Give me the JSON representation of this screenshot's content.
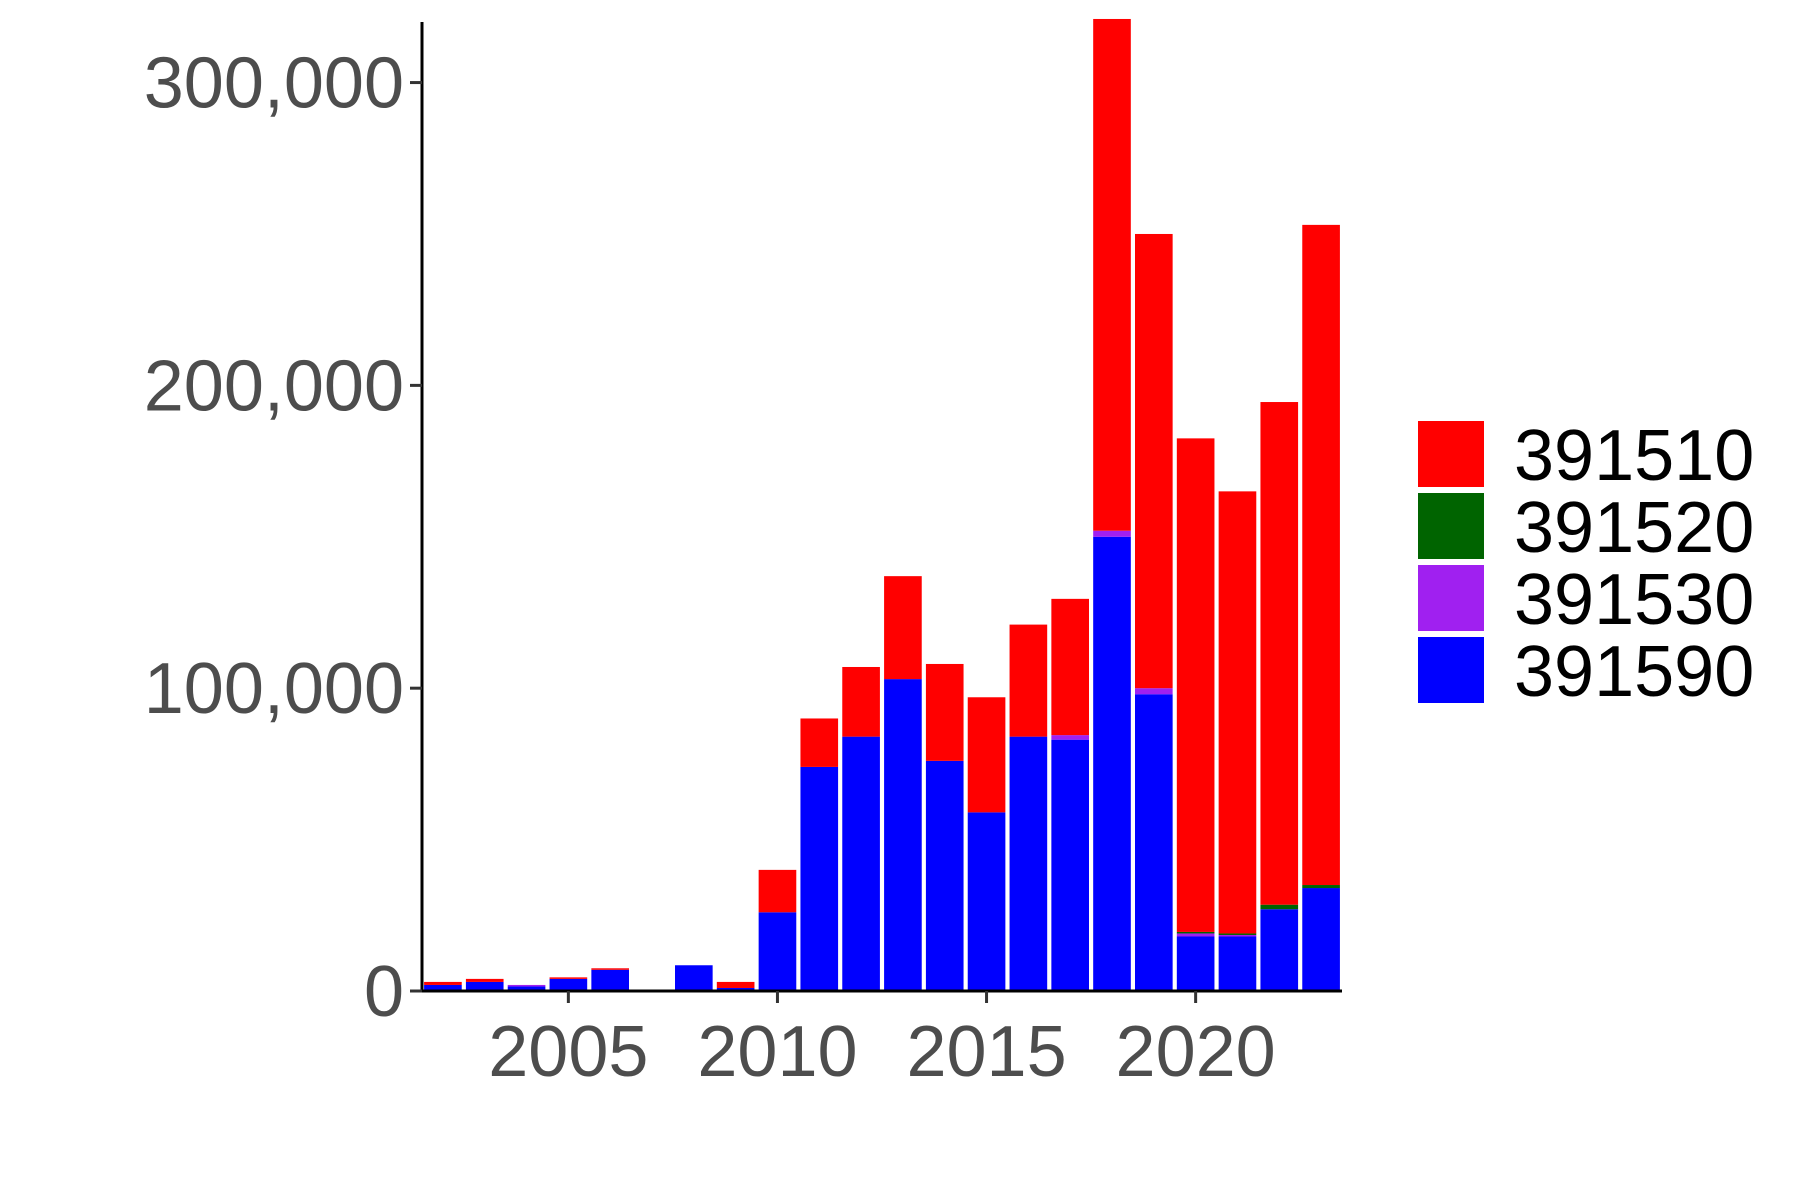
{
  "chart_data": {
    "type": "bar",
    "stacked": true,
    "title": "",
    "xlabel": "",
    "ylabel": "",
    "x": [
      2002,
      2003,
      2004,
      2005,
      2006,
      2007,
      2008,
      2009,
      2010,
      2011,
      2012,
      2013,
      2014,
      2015,
      2016,
      2017,
      2018,
      2019,
      2020,
      2021,
      2022,
      2023
    ],
    "series": [
      {
        "name": "391590",
        "color": "#0000ff",
        "values": [
          2000,
          3000,
          1500,
          4000,
          7000,
          0,
          8500,
          1000,
          26000,
          74000,
          84000,
          103000,
          76000,
          59000,
          84000,
          83000,
          150000,
          98000,
          18000,
          18000,
          27000,
          34000
        ]
      },
      {
        "name": "391530",
        "color": "#a020f0",
        "values": [
          0,
          0,
          500,
          0,
          0,
          0,
          0,
          0,
          0,
          0,
          0,
          0,
          0,
          0,
          0,
          1500,
          2000,
          2000,
          1000,
          500,
          0,
          0
        ]
      },
      {
        "name": "391520",
        "color": "#006400",
        "values": [
          0,
          0,
          0,
          0,
          0,
          0,
          0,
          0,
          0,
          0,
          0,
          0,
          0,
          0,
          0,
          0,
          0,
          0,
          500,
          500,
          1500,
          1000
        ]
      },
      {
        "name": "391510",
        "color": "#ff0000",
        "values": [
          1000,
          1000,
          0,
          500,
          500,
          0,
          0,
          2000,
          14000,
          16000,
          23000,
          34000,
          32000,
          38000,
          37000,
          45000,
          169000,
          150000,
          163000,
          146000,
          166000,
          218000
        ]
      }
    ],
    "ylim": [
      0,
      320000
    ],
    "yticks": [
      0,
      100000,
      200000,
      300000
    ],
    "ytick_labels": [
      "0",
      "100,000",
      "200,000",
      "300,000"
    ],
    "xticks": [
      2005,
      2010,
      2015,
      2020
    ],
    "xtick_labels": [
      "2005",
      "2010",
      "2015",
      "2020"
    ],
    "legend": {
      "position": "right",
      "entries": [
        {
          "label": "391510",
          "color": "#ff0000"
        },
        {
          "label": "391520",
          "color": "#006400"
        },
        {
          "label": "391530",
          "color": "#a020f0"
        },
        {
          "label": "391590",
          "color": "#0000ff"
        }
      ]
    },
    "grid": false
  }
}
